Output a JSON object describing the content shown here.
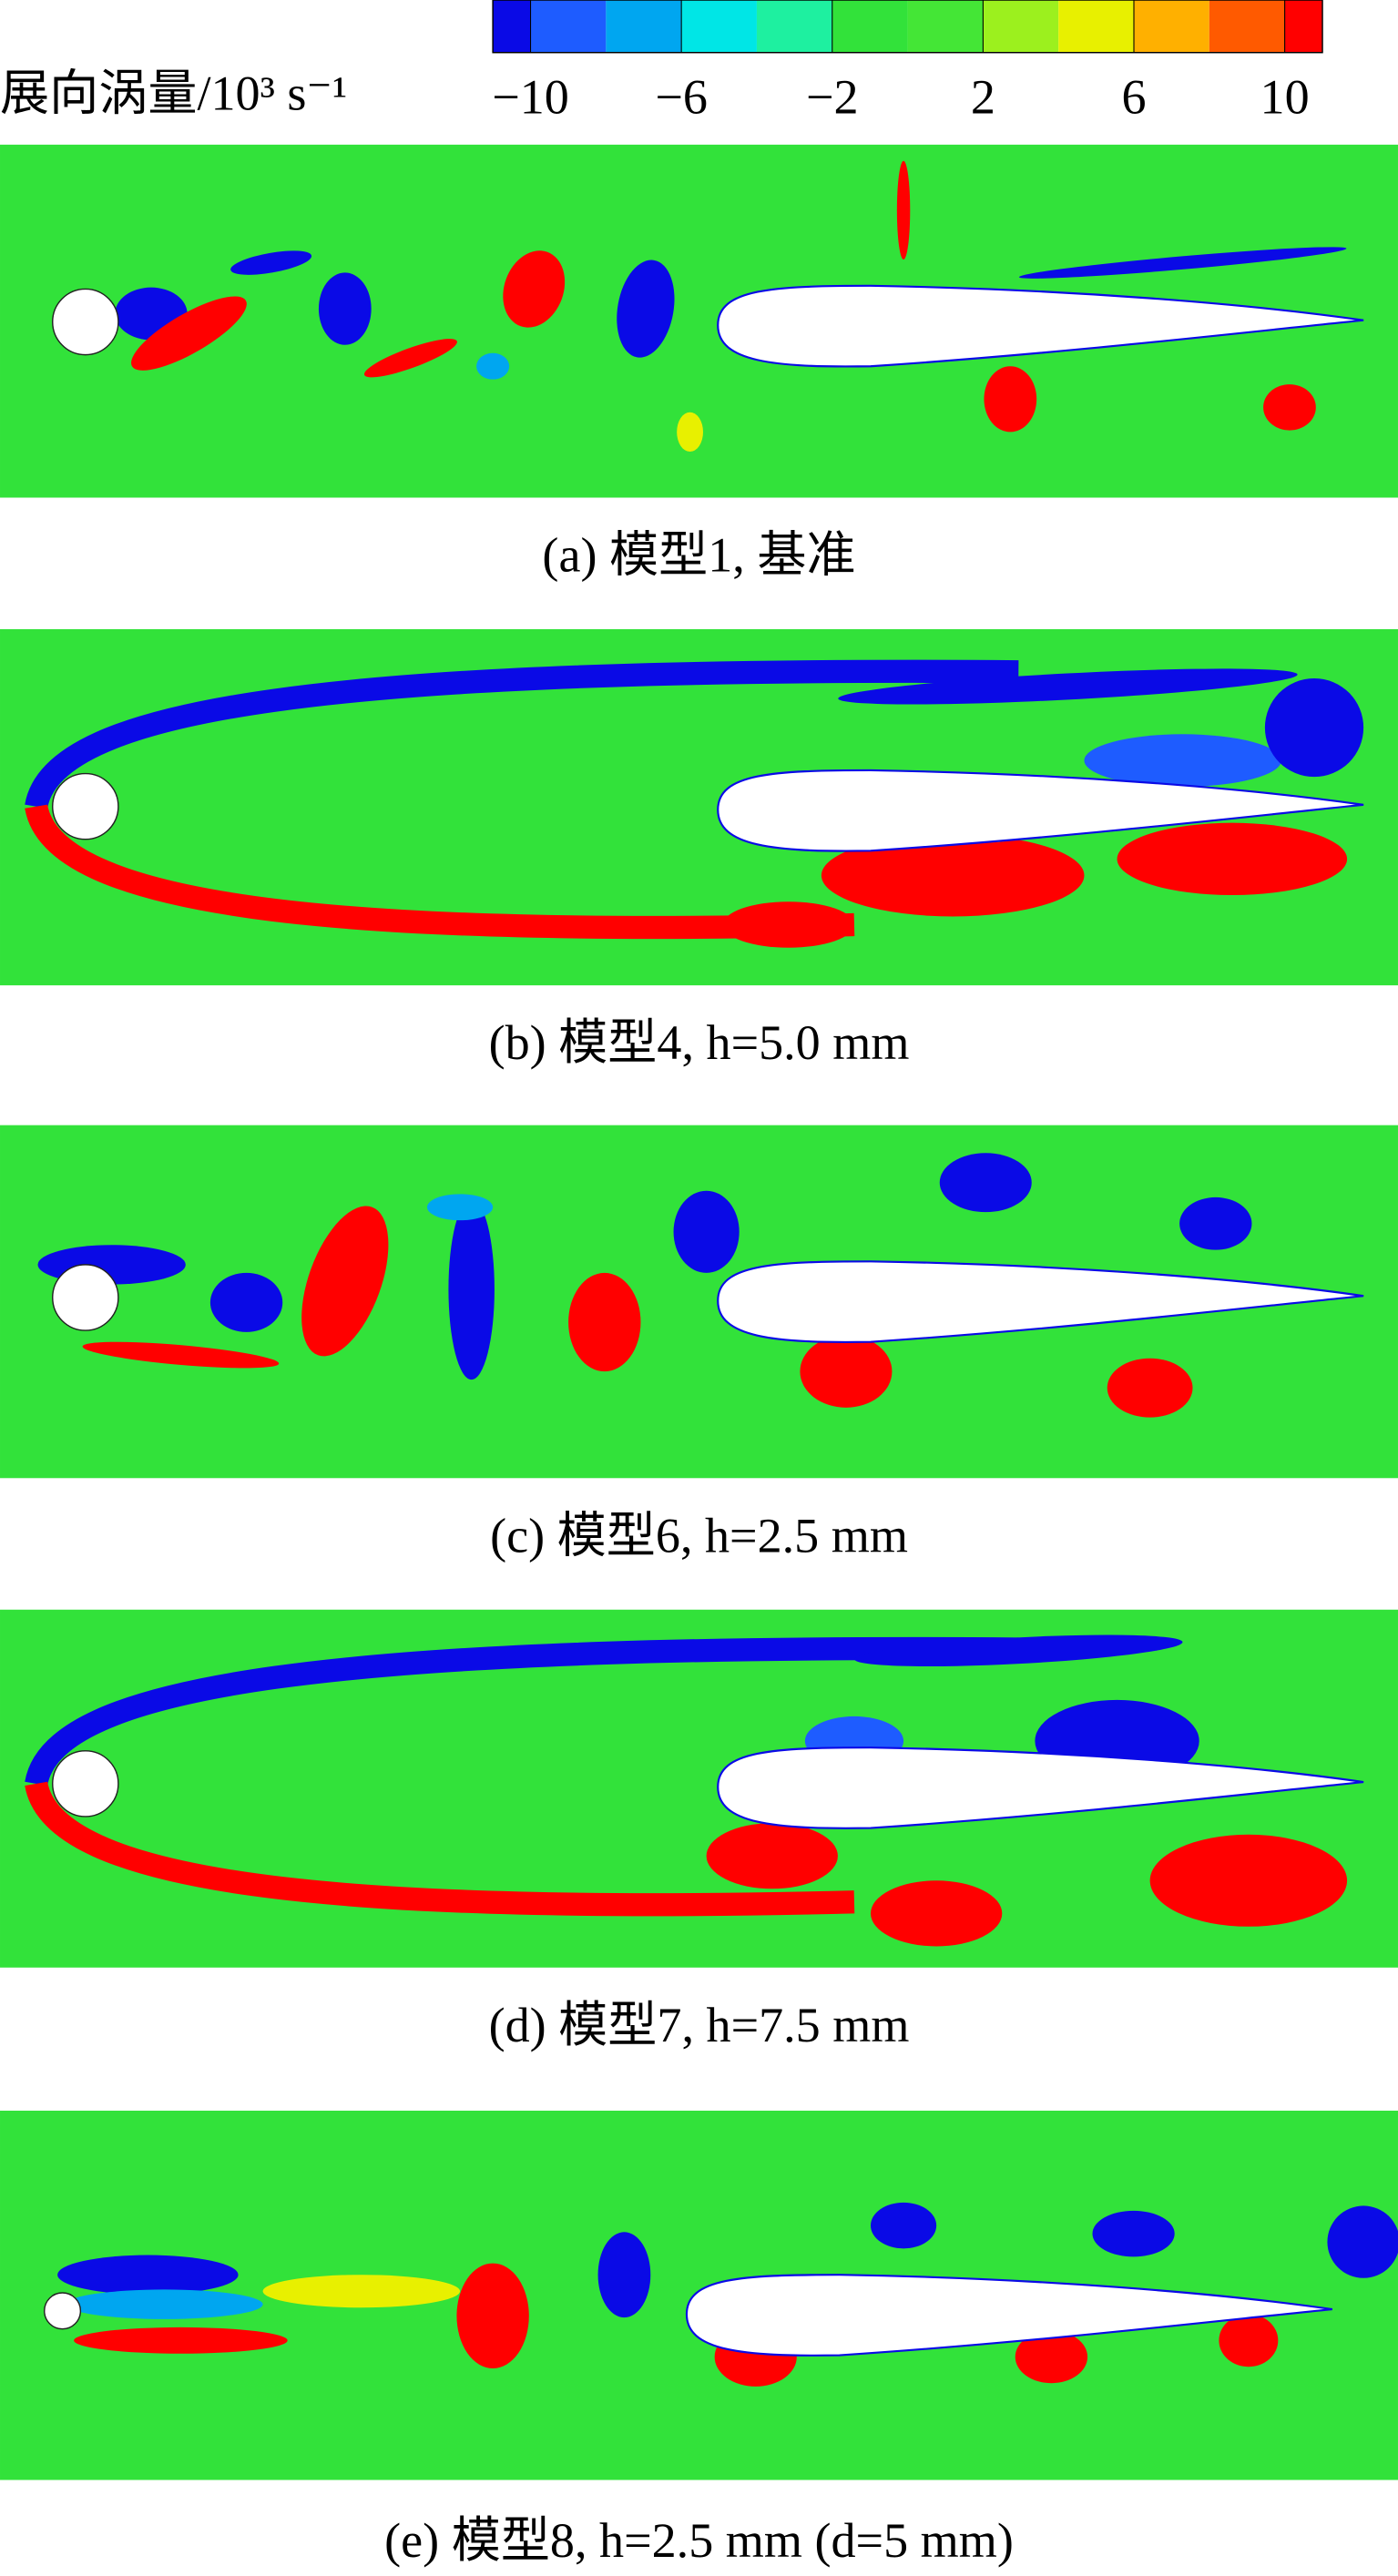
{
  "chart_data": {
    "type": "contour",
    "colorbar": {
      "title": "展向涡量/10³ s⁻¹",
      "clim": [
        -11,
        11
      ],
      "levels": [
        -10,
        -8,
        -6,
        -4,
        -2,
        0,
        2,
        4,
        6,
        8,
        10
      ],
      "ticks": [
        {
          "value": -10,
          "label": "−10"
        },
        {
          "value": -6,
          "label": "−6"
        },
        {
          "value": -2,
          "label": "−2"
        },
        2,
        6,
        10
      ],
      "colors": [
        "#0a0ae6",
        "#1e5cff",
        "#00a6f0",
        "#00e6e6",
        "#1ef0a0",
        "#32e23a",
        "#44e636",
        "#9cf01e",
        "#e8f000",
        "#ffb000",
        "#ff5a00",
        "#ff0000"
      ]
    },
    "panels": [
      {
        "caption": "(a) 模型1, 基准"
      },
      {
        "caption": "(b) 模型4, h=5.0 mm"
      },
      {
        "caption": "(c) 模型6, h=2.5 mm"
      },
      {
        "caption": "(d) 模型7, h=7.5 mm"
      },
      {
        "caption": "(e) 模型8, h=2.5 mm (d=5 mm)"
      }
    ]
  }
}
